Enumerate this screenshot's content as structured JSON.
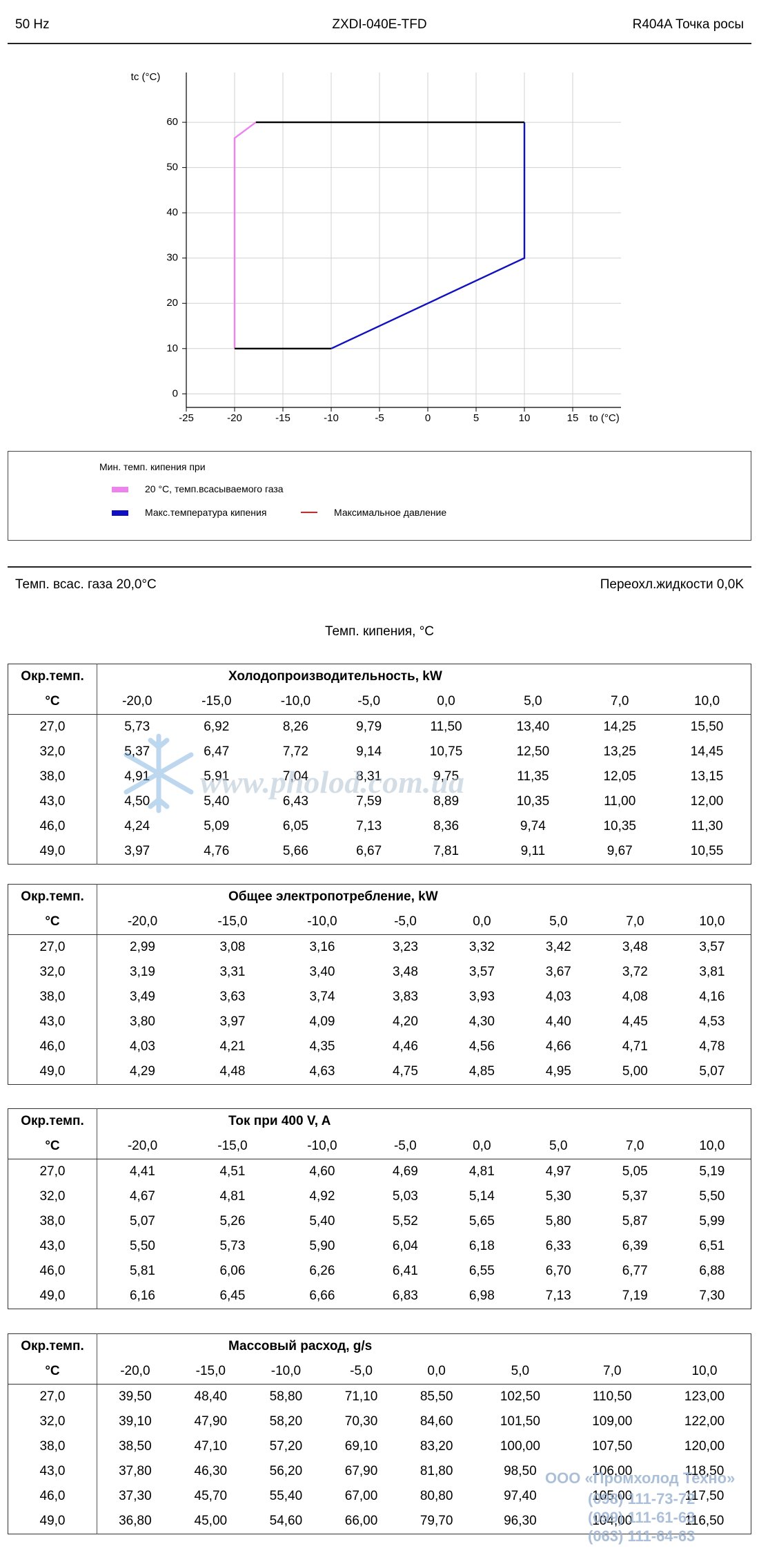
{
  "header": {
    "left": "50 Hz",
    "center": "ZXDI-040E-TFD",
    "right": "R404A Точка росы"
  },
  "chart_data": {
    "type": "line",
    "xlabel": "to (°C)",
    "ylabel": "tc (°C)",
    "xlim": [
      -25,
      20
    ],
    "ylim": [
      -3,
      71
    ],
    "xticks": [
      -25,
      -20,
      -15,
      -10,
      -5,
      0,
      5,
      10,
      15
    ],
    "yticks": [
      0,
      10,
      20,
      30,
      40,
      50,
      60
    ],
    "grid": true,
    "legend_title": "Мин. темп. кипения при",
    "series": [
      {
        "name": "20 °C, темп.всасываемого газа",
        "color": "#ee82ee",
        "x": [
          -20,
          -20,
          -17.8
        ],
        "values": [
          10,
          56.5,
          60
        ]
      },
      {
        "name": "Макс.температура кипения",
        "color": "#1010c0",
        "x": [
          10,
          10,
          -10
        ],
        "values": [
          60,
          30,
          10
        ]
      },
      {
        "name": "Максимальное давление",
        "color": "#e02020",
        "x": [],
        "values": []
      },
      {
        "color": "#000000",
        "x": [
          -20,
          -10,
          null,
          -17.8,
          10
        ],
        "values": [
          10,
          10,
          null,
          60,
          60
        ]
      }
    ]
  },
  "info": {
    "left": "Темп. всас. газа 20,0°C",
    "right": "Переохл.жидкости 0,0K",
    "center": "Темп. кипения, °C"
  },
  "tables": [
    {
      "title": "Холодопроизводительность, kW",
      "head": [
        "Окр.темп.",
        "°C"
      ],
      "columns": [
        "-20,0",
        "-15,0",
        "-10,0",
        "-5,0",
        "0,0",
        "5,0",
        "7,0",
        "10,0"
      ],
      "rows": [
        {
          "label": "27,0",
          "values": [
            "5,73",
            "6,92",
            "8,26",
            "9,79",
            "11,50",
            "13,40",
            "14,25",
            "15,50"
          ]
        },
        {
          "label": "32,0",
          "values": [
            "5,37",
            "6,47",
            "7,72",
            "9,14",
            "10,75",
            "12,50",
            "13,25",
            "14,45"
          ]
        },
        {
          "label": "38,0",
          "values": [
            "4,91",
            "5,91",
            "7,04",
            "8,31",
            "9,75",
            "11,35",
            "12,05",
            "13,15"
          ]
        },
        {
          "label": "43,0",
          "values": [
            "4,50",
            "5,40",
            "6,43",
            "7,59",
            "8,89",
            "10,35",
            "11,00",
            "12,00"
          ]
        },
        {
          "label": "46,0",
          "values": [
            "4,24",
            "5,09",
            "6,05",
            "7,13",
            "8,36",
            "9,74",
            "10,35",
            "11,30"
          ]
        },
        {
          "label": "49,0",
          "values": [
            "3,97",
            "4,76",
            "5,66",
            "6,67",
            "7,81",
            "9,11",
            "9,67",
            "10,55"
          ]
        }
      ]
    },
    {
      "title": "Общее электропотребление, kW",
      "head": [
        "Окр.темп.",
        "°C"
      ],
      "columns": [
        "-20,0",
        "-15,0",
        "-10,0",
        "-5,0",
        "0,0",
        "5,0",
        "7,0",
        "10,0"
      ],
      "rows": [
        {
          "label": "27,0",
          "values": [
            "2,99",
            "3,08",
            "3,16",
            "3,23",
            "3,32",
            "3,42",
            "3,48",
            "3,57"
          ]
        },
        {
          "label": "32,0",
          "values": [
            "3,19",
            "3,31",
            "3,40",
            "3,48",
            "3,57",
            "3,67",
            "3,72",
            "3,81"
          ]
        },
        {
          "label": "38,0",
          "values": [
            "3,49",
            "3,63",
            "3,74",
            "3,83",
            "3,93",
            "4,03",
            "4,08",
            "4,16"
          ]
        },
        {
          "label": "43,0",
          "values": [
            "3,80",
            "3,97",
            "4,09",
            "4,20",
            "4,30",
            "4,40",
            "4,45",
            "4,53"
          ]
        },
        {
          "label": "46,0",
          "values": [
            "4,03",
            "4,21",
            "4,35",
            "4,46",
            "4,56",
            "4,66",
            "4,71",
            "4,78"
          ]
        },
        {
          "label": "49,0",
          "values": [
            "4,29",
            "4,48",
            "4,63",
            "4,75",
            "4,85",
            "4,95",
            "5,00",
            "5,07"
          ]
        }
      ]
    },
    {
      "title": "Ток при 400 V, A",
      "head": [
        "Окр.темп.",
        "°C"
      ],
      "columns": [
        "-20,0",
        "-15,0",
        "-10,0",
        "-5,0",
        "0,0",
        "5,0",
        "7,0",
        "10,0"
      ],
      "rows": [
        {
          "label": "27,0",
          "values": [
            "4,41",
            "4,51",
            "4,60",
            "4,69",
            "4,81",
            "4,97",
            "5,05",
            "5,19"
          ]
        },
        {
          "label": "32,0",
          "values": [
            "4,67",
            "4,81",
            "4,92",
            "5,03",
            "5,14",
            "5,30",
            "5,37",
            "5,50"
          ]
        },
        {
          "label": "38,0",
          "values": [
            "5,07",
            "5,26",
            "5,40",
            "5,52",
            "5,65",
            "5,80",
            "5,87",
            "5,99"
          ]
        },
        {
          "label": "43,0",
          "values": [
            "5,50",
            "5,73",
            "5,90",
            "6,04",
            "6,18",
            "6,33",
            "6,39",
            "6,51"
          ]
        },
        {
          "label": "46,0",
          "values": [
            "5,81",
            "6,06",
            "6,26",
            "6,41",
            "6,55",
            "6,70",
            "6,77",
            "6,88"
          ]
        },
        {
          "label": "49,0",
          "values": [
            "6,16",
            "6,45",
            "6,66",
            "6,83",
            "6,98",
            "7,13",
            "7,19",
            "7,30"
          ]
        }
      ]
    },
    {
      "title": "Массовый расход, g/s",
      "head": [
        "Окр.темп.",
        "°C"
      ],
      "columns": [
        "-20,0",
        "-15,0",
        "-10,0",
        "-5,0",
        "0,0",
        "5,0",
        "7,0",
        "10,0"
      ],
      "rows": [
        {
          "label": "27,0",
          "values": [
            "39,50",
            "48,40",
            "58,80",
            "71,10",
            "85,50",
            "102,50",
            "110,50",
            "123,00"
          ]
        },
        {
          "label": "32,0",
          "values": [
            "39,10",
            "47,90",
            "58,20",
            "70,30",
            "84,60",
            "101,50",
            "109,00",
            "122,00"
          ]
        },
        {
          "label": "38,0",
          "values": [
            "38,50",
            "47,10",
            "57,20",
            "69,10",
            "83,20",
            "100,00",
            "107,50",
            "120,00"
          ]
        },
        {
          "label": "43,0",
          "values": [
            "37,80",
            "46,30",
            "56,20",
            "67,90",
            "81,80",
            "98,50",
            "106,00",
            "118,50"
          ]
        },
        {
          "label": "46,0",
          "values": [
            "37,30",
            "45,70",
            "55,40",
            "67,00",
            "80,80",
            "97,40",
            "105,00",
            "117,50"
          ]
        },
        {
          "label": "49,0",
          "values": [
            "36,80",
            "45,00",
            "54,60",
            "66,00",
            "79,70",
            "96,30",
            "104,00",
            "116,50"
          ]
        }
      ]
    }
  ],
  "watermark": {
    "site": "www.pholod.com.ua",
    "company": "ООО «Промхолод Техно»",
    "phones": [
      "(098) 111-73-72",
      "(099) 111-61-63",
      "(063) 111-64-63"
    ]
  }
}
